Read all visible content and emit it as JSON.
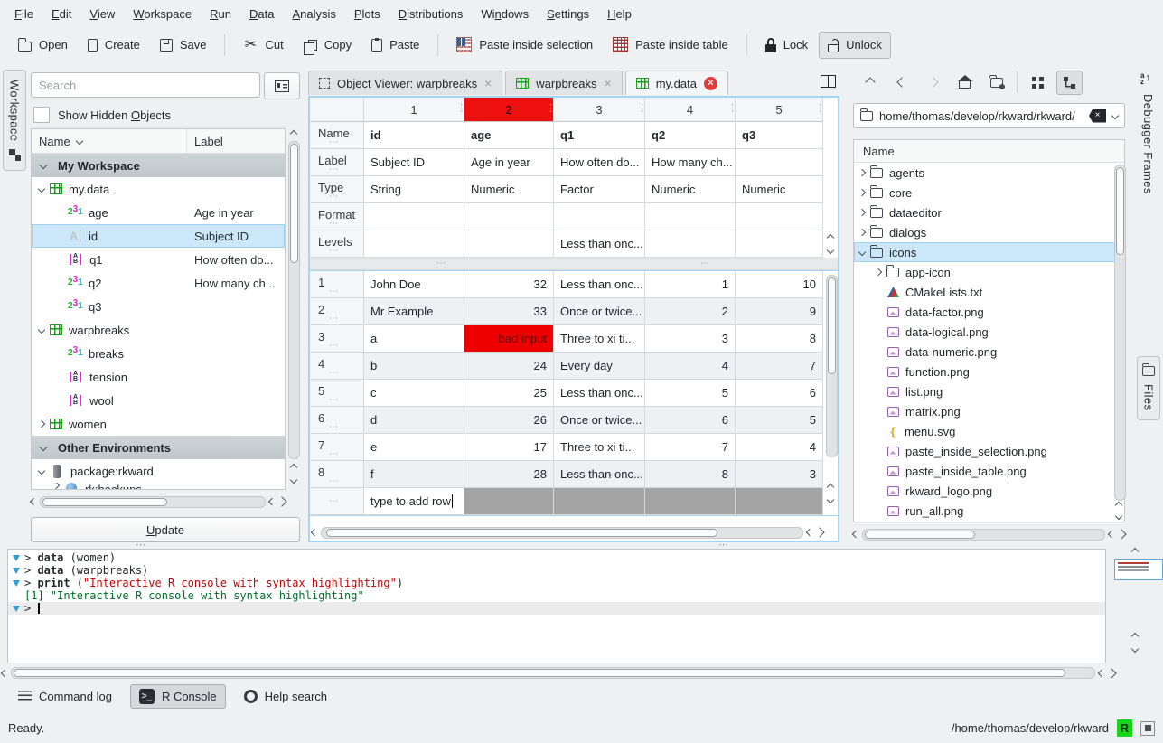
{
  "colors": {
    "accent": "#3daee9",
    "selected_column_red": "#ee0f0f",
    "error_cell_bg": "#ee0000",
    "r_badge_green": "#16d616",
    "console_string": "#bf0303",
    "console_output": "#006e28"
  },
  "icons": {
    "cut_glyph": "✂",
    "close_glyph": "×",
    "handle_dots": "⋯",
    "sort_a": "a",
    "sort_z": "z",
    "sort_arrow": "↑",
    "rcon_glyph": ">_",
    "brace_glyph": "{",
    "numeric_icon_digits": [
      "2",
      "3",
      "1"
    ],
    "factor_icon_letters": [
      "A",
      "B"
    ],
    "string_icon_letter": "A"
  },
  "menu_bar": {
    "items": [
      "File",
      "Edit",
      "View",
      "Workspace",
      "Run",
      "Data",
      "Analysis",
      "Plots",
      "Distributions",
      "Windows",
      "Settings",
      "Help"
    ],
    "mnemonics": [
      0,
      0,
      0,
      0,
      0,
      0,
      0,
      0,
      0,
      2,
      0,
      0
    ]
  },
  "toolbar": {
    "open": "Open",
    "create": "Create",
    "save": "Save",
    "cut": "Cut",
    "copy": "Copy",
    "paste": "Paste",
    "paste_inside_selection": "Paste inside selection",
    "paste_inside_table": "Paste inside table",
    "lock": "Lock",
    "unlock": "Unlock"
  },
  "workspace_panel": {
    "tab_label": "Workspace",
    "search_placeholder": "Search",
    "show_hidden_label": "Show Hidden Objects",
    "show_hidden_mnemonic": 12,
    "columns": {
      "name": "Name",
      "label": "Label"
    },
    "update_label": "Update",
    "update_mnemonic": 0,
    "tree": [
      {
        "kind": "section",
        "name": "My Workspace",
        "expanded": true
      },
      {
        "kind": "table",
        "name": "my.data",
        "label": "",
        "indent": 1,
        "expanded": true
      },
      {
        "kind": "numeric",
        "name": "age",
        "label": "Age in year",
        "indent": 2
      },
      {
        "kind": "string",
        "name": "id",
        "label": "Subject ID",
        "indent": 2,
        "selected": true
      },
      {
        "kind": "factor",
        "name": "q1",
        "label": "How often do...",
        "indent": 2
      },
      {
        "kind": "numeric",
        "name": "q2",
        "label": "How many ch...",
        "indent": 2
      },
      {
        "kind": "numeric",
        "name": "q3",
        "label": "",
        "indent": 2
      },
      {
        "kind": "table",
        "name": "warpbreaks",
        "label": "",
        "indent": 1,
        "expanded": true
      },
      {
        "kind": "numeric",
        "name": "breaks",
        "label": "",
        "indent": 2
      },
      {
        "kind": "factor",
        "name": "tension",
        "label": "",
        "indent": 2
      },
      {
        "kind": "factor",
        "name": "wool",
        "label": "",
        "indent": 2
      },
      {
        "kind": "table",
        "name": "women",
        "label": "",
        "indent": 1,
        "expanded": false
      },
      {
        "kind": "section",
        "name": "Other Environments",
        "expanded": true
      },
      {
        "kind": "package",
        "name": "package:rkward",
        "label": "",
        "indent": 1,
        "expanded": true
      },
      {
        "kind": "globe",
        "name": "rk:backups",
        "label": "",
        "indent": 2,
        "expanded": false,
        "clipped": true
      }
    ]
  },
  "editor_tabs": [
    {
      "label": "Object Viewer: warpbreaks",
      "icon": "object-viewer-icon",
      "active": false,
      "modified": false
    },
    {
      "label": "warpbreaks",
      "icon": "table-icon",
      "active": false,
      "modified": false
    },
    {
      "label": "my.data",
      "icon": "table-icon",
      "active": true,
      "modified": true
    }
  ],
  "data_editor": {
    "column_numbers": [
      "1",
      "2",
      "3",
      "4",
      "5"
    ],
    "selected_column_index": 1,
    "meta_rows": [
      {
        "header": "Name",
        "cells": [
          "id",
          "age",
          "q1",
          "q2",
          "q3"
        ]
      },
      {
        "header": "Label",
        "cells": [
          "Subject ID",
          "Age in year",
          "How often do...",
          "How many ch...",
          ""
        ]
      },
      {
        "header": "Type",
        "cells": [
          "String",
          "Numeric",
          "Factor",
          "Numeric",
          "Numeric"
        ]
      },
      {
        "header": "Format",
        "cells": [
          "",
          "",
          "",
          "",
          ""
        ]
      },
      {
        "header": "Levels",
        "cells": [
          "",
          "",
          "Less than onc...",
          "",
          ""
        ]
      }
    ],
    "data_rows": [
      {
        "num": "1",
        "cells": [
          "John Doe",
          "32",
          "Less than onc...",
          "1",
          "10"
        ]
      },
      {
        "num": "2",
        "cells": [
          "Mr Example",
          "33",
          "Once or twice...",
          "2",
          "9"
        ]
      },
      {
        "num": "3",
        "cells": [
          "a",
          "bad input",
          "Three to xi ti...",
          "3",
          "8"
        ],
        "error_col": 1
      },
      {
        "num": "4",
        "cells": [
          "b",
          "24",
          "Every day",
          "4",
          "7"
        ]
      },
      {
        "num": "5",
        "cells": [
          "c",
          "25",
          "Less than onc...",
          "5",
          "6"
        ]
      },
      {
        "num": "6",
        "cells": [
          "d",
          "26",
          "Once or twice...",
          "6",
          "5"
        ]
      },
      {
        "num": "7",
        "cells": [
          "e",
          "17",
          "Three to xi ti...",
          "7",
          "4"
        ]
      },
      {
        "num": "8",
        "cells": [
          "f",
          "28",
          "Less than onc...",
          "8",
          "3"
        ]
      }
    ],
    "add_row_text": "type to add row",
    "alignments": [
      "left",
      "right",
      "left",
      "right",
      "right"
    ]
  },
  "files_panel": {
    "path": "home/thomas/develop/rkward/rkward/",
    "column_name": "Name",
    "tree": [
      {
        "name": "agents",
        "kind": "folder",
        "indent": 0,
        "expanded": false
      },
      {
        "name": "core",
        "kind": "folder",
        "indent": 0,
        "expanded": false
      },
      {
        "name": "dataeditor",
        "kind": "folder",
        "indent": 0,
        "expanded": false
      },
      {
        "name": "dialogs",
        "kind": "folder",
        "indent": 0,
        "expanded": false
      },
      {
        "name": "icons",
        "kind": "folder",
        "indent": 0,
        "expanded": true,
        "selected": true
      },
      {
        "name": "app-icon",
        "kind": "folder",
        "indent": 1,
        "expanded": false
      },
      {
        "name": "CMakeLists.txt",
        "kind": "cmake",
        "indent": 1
      },
      {
        "name": "data-factor.png",
        "kind": "image",
        "indent": 1
      },
      {
        "name": "data-logical.png",
        "kind": "image",
        "indent": 1
      },
      {
        "name": "data-numeric.png",
        "kind": "image",
        "indent": 1
      },
      {
        "name": "function.png",
        "kind": "image",
        "indent": 1
      },
      {
        "name": "list.png",
        "kind": "image",
        "indent": 1
      },
      {
        "name": "matrix.png",
        "kind": "image",
        "indent": 1
      },
      {
        "name": "menu.svg",
        "kind": "svg",
        "indent": 1
      },
      {
        "name": "paste_inside_selection.png",
        "kind": "image",
        "indent": 1
      },
      {
        "name": "paste_inside_table.png",
        "kind": "image",
        "indent": 1
      },
      {
        "name": "rkward_logo.png",
        "kind": "image",
        "indent": 1
      },
      {
        "name": "run_all.png",
        "kind": "image",
        "indent": 1
      }
    ]
  },
  "right_strip": {
    "debugger_frames_label": "Debugger Frames",
    "files_label": "Files"
  },
  "console": {
    "lines": [
      {
        "marker": true,
        "segments": [
          [
            "plain",
            "> "
          ],
          [
            "bold",
            "data"
          ],
          [
            "plain",
            " (women)"
          ]
        ]
      },
      {
        "marker": true,
        "segments": [
          [
            "plain",
            "> "
          ],
          [
            "bold",
            "data"
          ],
          [
            "plain",
            " (warpbreaks)"
          ]
        ]
      },
      {
        "marker": true,
        "segments": [
          [
            "plain",
            "> "
          ],
          [
            "bold",
            "print"
          ],
          [
            "plain",
            " ("
          ],
          [
            "string",
            "\"Interactive R console with syntax highlighting\""
          ],
          [
            "plain",
            ")"
          ]
        ]
      },
      {
        "marker": false,
        "segments": [
          [
            "output",
            "[1] \"Interactive R console with syntax highlighting\""
          ]
        ]
      },
      {
        "marker": true,
        "segments": [
          [
            "plain",
            "> "
          ]
        ],
        "cursor": true,
        "current": true
      }
    ]
  },
  "bottom_tabs": {
    "command_log": "Command log",
    "r_console": "R Console",
    "help_search": "Help search"
  },
  "status_bar": {
    "ready": "Ready.",
    "path": "/home/thomas/develop/rkward",
    "r_badge": "R"
  }
}
